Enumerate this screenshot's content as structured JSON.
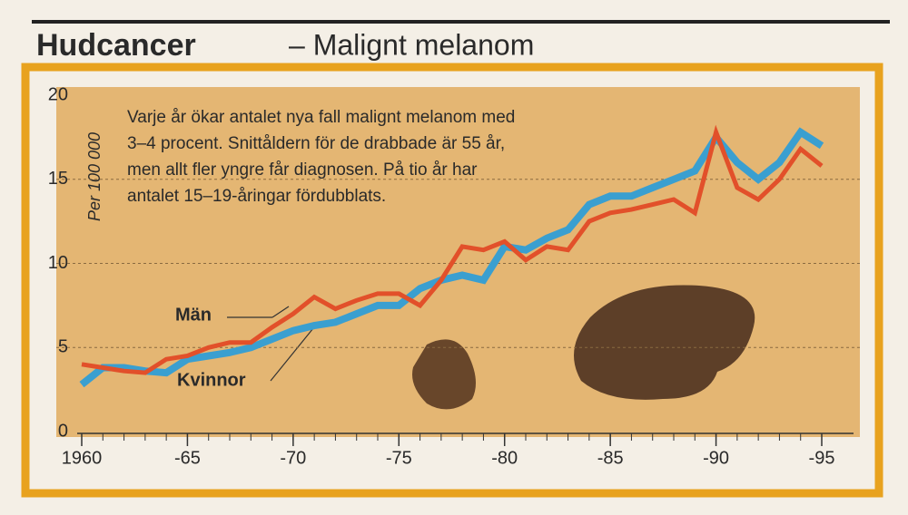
{
  "chart_data": {
    "type": "line",
    "title": "Hudcancer",
    "subtitle": "– Malignt melanom",
    "annotation": [
      "Varje år ökar antalet nya fall malignt melanom med",
      "3–4 procent. Snittåldern för de drabbade är 55 år,",
      "men allt fler yngre får diagnosen. På tio år har",
      "antalet 15–19-åringar fördubblats."
    ],
    "y_label": "Per 100 000",
    "x": [
      1960,
      1961,
      1962,
      1963,
      1964,
      1965,
      1966,
      1967,
      1968,
      1969,
      1970,
      1971,
      1972,
      1973,
      1974,
      1975,
      1976,
      1977,
      1978,
      1979,
      1980,
      1981,
      1982,
      1983,
      1984,
      1985,
      1986,
      1987,
      1988,
      1989,
      1990,
      1991,
      1992,
      1993,
      1994,
      1995
    ],
    "series": [
      {
        "name": "Män",
        "color": "#e2502a",
        "values": [
          4.0,
          3.8,
          3.6,
          3.5,
          4.3,
          4.5,
          5.0,
          5.3,
          5.3,
          6.2,
          7.0,
          8.0,
          7.3,
          7.8,
          8.2,
          8.2,
          7.5,
          9.0,
          11.0,
          10.8,
          11.3,
          10.2,
          11.0,
          10.8,
          12.5,
          13.0,
          13.2,
          13.5,
          13.8,
          13.0,
          17.8,
          14.5,
          13.8,
          15.0,
          16.8,
          15.8
        ]
      },
      {
        "name": "Kvinnor",
        "color": "#3a9fd0",
        "values": [
          2.8,
          3.8,
          3.8,
          3.6,
          3.5,
          4.3,
          4.5,
          4.7,
          5.0,
          5.5,
          6.0,
          6.3,
          6.5,
          7.0,
          7.5,
          7.5,
          8.5,
          9.0,
          9.3,
          9.0,
          11.0,
          10.8,
          11.5,
          12.0,
          13.5,
          14.0,
          14.0,
          14.5,
          15.0,
          15.5,
          17.5,
          16.0,
          15.0,
          16.0,
          17.8,
          17.0
        ]
      }
    ],
    "xlim": [
      1960,
      1995
    ],
    "xticks": [
      1960,
      {
        "value": 1965,
        "label": "-65"
      },
      {
        "value": 1970,
        "label": "-70"
      },
      {
        "value": 1975,
        "label": "-75"
      },
      {
        "value": 1980,
        "label": "-80"
      },
      {
        "value": 1985,
        "label": "-85"
      },
      {
        "value": 1990,
        "label": "-90"
      },
      {
        "value": 1995,
        "label": "-95"
      }
    ],
    "ylim": [
      0,
      20
    ],
    "yticks": [
      0,
      5,
      10,
      15,
      20
    ],
    "grid": true
  }
}
